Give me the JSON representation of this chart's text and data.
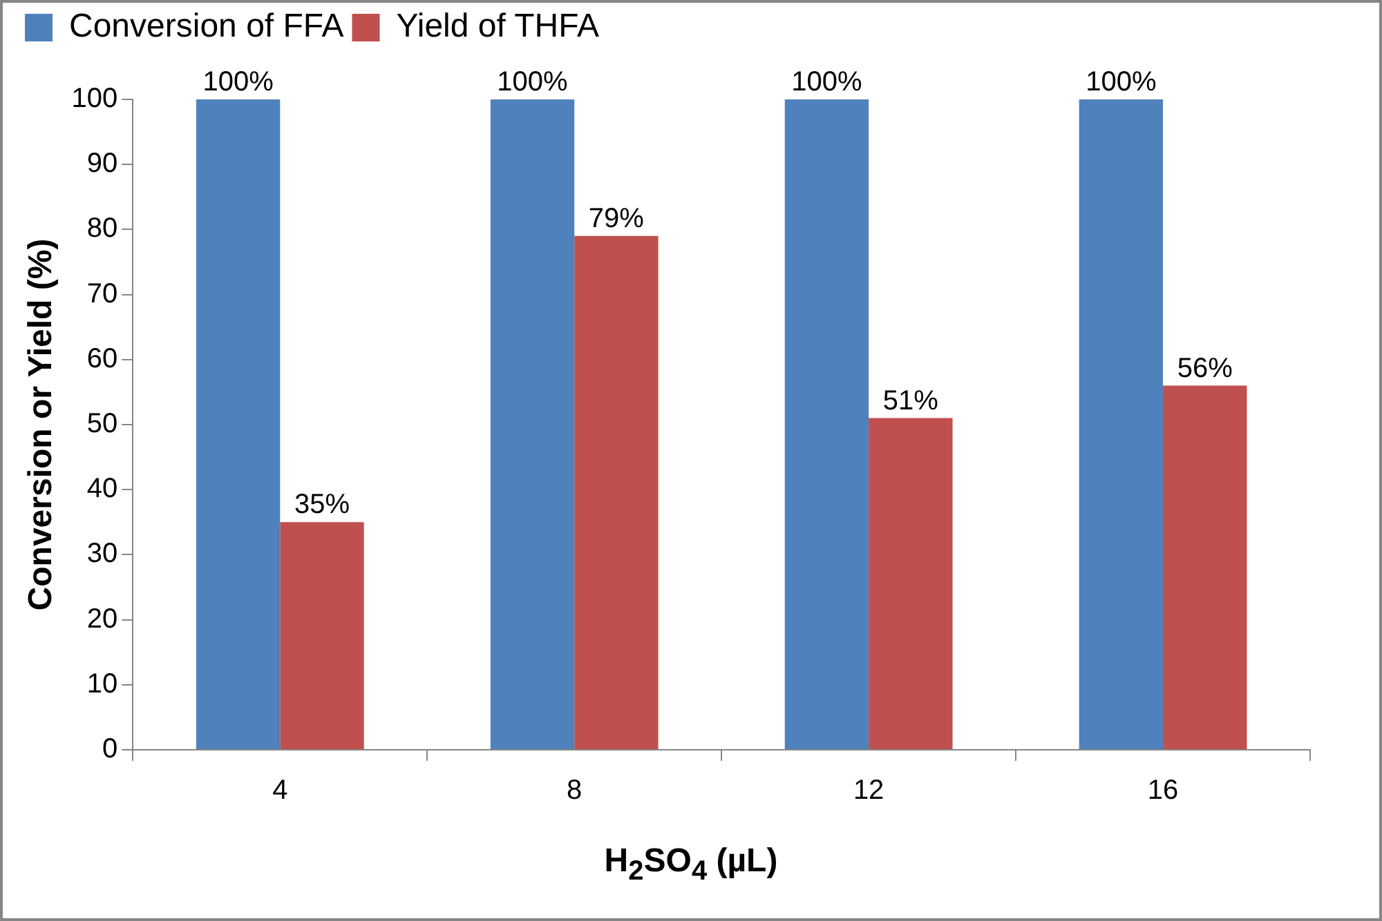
{
  "chart_data": {
    "type": "bar",
    "xlabel": "H$_{2}$SO$_{4}$ (µL)",
    "ylabel": "Conversion or Yield (%)",
    "categories": [
      "4",
      "8",
      "12",
      "16"
    ],
    "series": [
      {
        "name": "Conversion of FFA",
        "color": "#4f81bd",
        "values": [
          100,
          100,
          100,
          100
        ],
        "value_labels": [
          "100%",
          "100%",
          "100%",
          "100%"
        ]
      },
      {
        "name": "Yield of THFA",
        "color": "#c0504d",
        "values": [
          35,
          79,
          51,
          56
        ],
        "value_labels": [
          "35%",
          "79%",
          "51%",
          "56%"
        ]
      }
    ],
    "ylim": [
      0,
      100
    ],
    "yticks": [
      0,
      10,
      20,
      30,
      40,
      50,
      60,
      70,
      80,
      90,
      100
    ],
    "grid": false,
    "legend": "top left"
  }
}
